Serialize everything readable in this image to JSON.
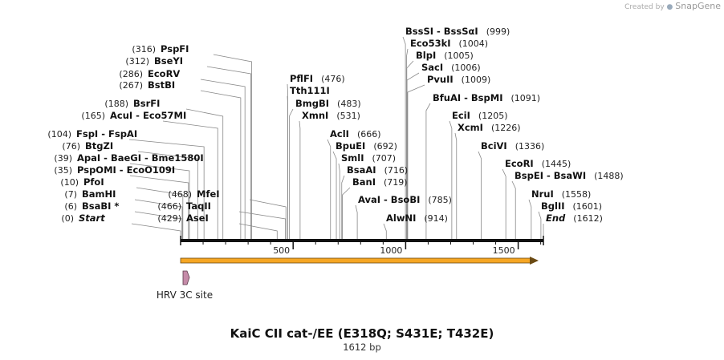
{
  "credit": {
    "prefix": "Created by",
    "brand": "SnapGene"
  },
  "title": "KaiC CII cat-/EE (E318Q; S431E; T432E)",
  "subtitle": "1612 bp",
  "sequence_length": 1612,
  "axis_ticks": [
    "500",
    "1000",
    "1500"
  ],
  "feature_label": "HRV 3C site",
  "sites": [
    {
      "pos": 0,
      "pos_label": "(0)",
      "names": [
        "Start"
      ],
      "italic": true,
      "label_side": "right"
    },
    {
      "pos": 6,
      "pos_label": "(6)",
      "names": [
        "BsaBI *"
      ],
      "label_side": "right"
    },
    {
      "pos": 7,
      "pos_label": "(7)",
      "names": [
        "BamHI"
      ],
      "label_side": "right"
    },
    {
      "pos": 10,
      "pos_label": "(10)",
      "names": [
        "PfoI"
      ],
      "label_side": "right"
    },
    {
      "pos": 35,
      "pos_label": "(35)",
      "names": [
        "PspOMI",
        "EcoO109I"
      ],
      "label_side": "right"
    },
    {
      "pos": 39,
      "pos_label": "(39)",
      "names": [
        "ApaI",
        "BaeGI",
        "Bme1580I"
      ],
      "label_side": "right"
    },
    {
      "pos": 76,
      "pos_label": "(76)",
      "names": [
        "BtgZI"
      ],
      "label_side": "right"
    },
    {
      "pos": 104,
      "pos_label": "(104)",
      "names": [
        "FspI",
        "FspAI"
      ],
      "label_side": "right"
    },
    {
      "pos": 165,
      "pos_label": "(165)",
      "names": [
        "AcuI",
        "Eco57MI"
      ],
      "label_side": "right"
    },
    {
      "pos": 188,
      "pos_label": "(188)",
      "names": [
        "BsrFI"
      ],
      "label_side": "right"
    },
    {
      "pos": 267,
      "pos_label": "(267)",
      "names": [
        "BstBI"
      ],
      "label_side": "right"
    },
    {
      "pos": 286,
      "pos_label": "(286)",
      "names": [
        "EcoRV"
      ],
      "label_side": "right"
    },
    {
      "pos": 312,
      "pos_label": "(312)",
      "names": [
        "BseYI"
      ],
      "label_side": "right"
    },
    {
      "pos": 316,
      "pos_label": "(316)",
      "names": [
        "PspFI"
      ],
      "label_side": "right"
    },
    {
      "pos": 429,
      "pos_label": "(429)",
      "names": [
        "AseI"
      ],
      "label_side": "right"
    },
    {
      "pos": 466,
      "pos_label": "(466)",
      "names": [
        "TaqII"
      ],
      "label_side": "right"
    },
    {
      "pos": 468,
      "pos_label": "(468)",
      "names": [
        "MfeI"
      ],
      "label_side": "right"
    },
    {
      "pos": 476,
      "pos_label": "(476)",
      "names": [
        "PflFI"
      ],
      "label_side": "left"
    },
    {
      "pos": 476,
      "pos_label": "",
      "names": [
        "Tth111I"
      ],
      "label_side": "left"
    },
    {
      "pos": 483,
      "pos_label": "(483)",
      "names": [
        "BmgBI"
      ],
      "label_side": "left"
    },
    {
      "pos": 531,
      "pos_label": "(531)",
      "names": [
        "XmnI"
      ],
      "label_side": "left"
    },
    {
      "pos": 666,
      "pos_label": "(666)",
      "names": [
        "AclI"
      ],
      "label_side": "left"
    },
    {
      "pos": 692,
      "pos_label": "(692)",
      "names": [
        "BpuEI"
      ],
      "label_side": "left"
    },
    {
      "pos": 707,
      "pos_label": "(707)",
      "names": [
        "SmlI"
      ],
      "label_side": "left"
    },
    {
      "pos": 716,
      "pos_label": "(716)",
      "names": [
        "BsaAI"
      ],
      "label_side": "left"
    },
    {
      "pos": 719,
      "pos_label": "(719)",
      "names": [
        "BanI"
      ],
      "label_side": "left"
    },
    {
      "pos": 785,
      "pos_label": "(785)",
      "names": [
        "AvaI",
        "BsoBI"
      ],
      "label_side": "left"
    },
    {
      "pos": 914,
      "pos_label": "(914)",
      "names": [
        "AlwNI"
      ],
      "label_side": "left"
    },
    {
      "pos": 999,
      "pos_label": "(999)",
      "names": [
        "BssSI",
        "BssSαI"
      ],
      "label_side": "left"
    },
    {
      "pos": 1004,
      "pos_label": "(1004)",
      "names": [
        "Eco53kI"
      ],
      "label_side": "left"
    },
    {
      "pos": 1005,
      "pos_label": "(1005)",
      "names": [
        "BlpI"
      ],
      "label_side": "left"
    },
    {
      "pos": 1006,
      "pos_label": "(1006)",
      "names": [
        "SacI"
      ],
      "label_side": "left"
    },
    {
      "pos": 1009,
      "pos_label": "(1009)",
      "names": [
        "PvuII"
      ],
      "label_side": "left"
    },
    {
      "pos": 1091,
      "pos_label": "(1091)",
      "names": [
        "BfuAI",
        "BspMI"
      ],
      "label_side": "left"
    },
    {
      "pos": 1205,
      "pos_label": "(1205)",
      "names": [
        "EciI"
      ],
      "label_side": "left"
    },
    {
      "pos": 1226,
      "pos_label": "(1226)",
      "names": [
        "XcmI"
      ],
      "label_side": "left"
    },
    {
      "pos": 1336,
      "pos_label": "(1336)",
      "names": [
        "BciVI"
      ],
      "label_side": "left"
    },
    {
      "pos": 1445,
      "pos_label": "(1445)",
      "names": [
        "EcoRI"
      ],
      "label_side": "left"
    },
    {
      "pos": 1488,
      "pos_label": "(1488)",
      "names": [
        "BspEI",
        "BsaWI"
      ],
      "label_side": "left"
    },
    {
      "pos": 1558,
      "pos_label": "(1558)",
      "names": [
        "NruI"
      ],
      "label_side": "left"
    },
    {
      "pos": 1601,
      "pos_label": "(1601)",
      "names": [
        "BglII"
      ],
      "label_side": "left"
    },
    {
      "pos": 1612,
      "pos_label": "(1612)",
      "names": [
        "End"
      ],
      "italic": true,
      "label_side": "left"
    }
  ],
  "colors": {
    "backbone": "#111111",
    "orf_fill": "#f6a623",
    "orf_stroke": "#6b4a12",
    "feature_fill": "#c58ba8",
    "feature_stroke": "#5a3a4a",
    "leader": "#888888"
  }
}
